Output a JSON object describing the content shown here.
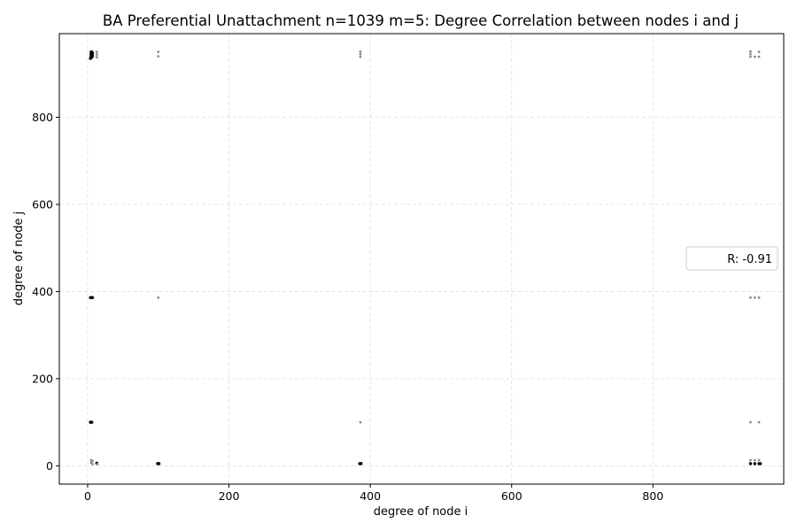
{
  "chart_data": {
    "type": "scatter",
    "title": "BA Preferential Unattachment n=1039 m=5: Degree Correlation between nodes i and j",
    "xlabel": "degree of node i",
    "ylabel": "degree of node j",
    "xlim": [
      -40,
      985
    ],
    "ylim": [
      -42,
      992
    ],
    "xticks": [
      0,
      200,
      400,
      600,
      800
    ],
    "yticks": [
      0,
      200,
      400,
      600,
      800
    ],
    "grid": true,
    "legend": {
      "placement": "center-right",
      "entries": [
        "R: -0.91"
      ]
    },
    "colors": {
      "point_dark": "#000000",
      "point_light": "#8c8c8c",
      "grid": "#dddddd"
    },
    "points": [
      {
        "x": 5,
        "y": 938,
        "tone": "dark"
      },
      {
        "x": 5,
        "y": 941,
        "tone": "dark"
      },
      {
        "x": 5,
        "y": 944,
        "tone": "dark"
      },
      {
        "x": 5,
        "y": 947,
        "tone": "dark"
      },
      {
        "x": 5,
        "y": 950,
        "tone": "dark"
      },
      {
        "x": 6,
        "y": 938,
        "tone": "dark"
      },
      {
        "x": 6,
        "y": 944,
        "tone": "dark"
      },
      {
        "x": 6,
        "y": 950,
        "tone": "dark"
      },
      {
        "x": 7,
        "y": 941,
        "tone": "dark"
      },
      {
        "x": 7,
        "y": 947,
        "tone": "dark"
      },
      {
        "x": 4,
        "y": 935,
        "tone": "dark"
      },
      {
        "x": 13,
        "y": 938,
        "tone": "light"
      },
      {
        "x": 13,
        "y": 944,
        "tone": "light"
      },
      {
        "x": 13,
        "y": 950,
        "tone": "light"
      },
      {
        "x": 100,
        "y": 940,
        "tone": "light"
      },
      {
        "x": 100,
        "y": 950,
        "tone": "light"
      },
      {
        "x": 386,
        "y": 939,
        "tone": "light"
      },
      {
        "x": 386,
        "y": 945,
        "tone": "light"
      },
      {
        "x": 386,
        "y": 951,
        "tone": "light"
      },
      {
        "x": 938,
        "y": 939,
        "tone": "light"
      },
      {
        "x": 938,
        "y": 945,
        "tone": "light"
      },
      {
        "x": 938,
        "y": 951,
        "tone": "light"
      },
      {
        "x": 944,
        "y": 939,
        "tone": "light"
      },
      {
        "x": 950,
        "y": 939,
        "tone": "light"
      },
      {
        "x": 950,
        "y": 950,
        "tone": "light"
      },
      {
        "x": 4,
        "y": 386,
        "tone": "dark"
      },
      {
        "x": 5,
        "y": 386,
        "tone": "dark"
      },
      {
        "x": 6,
        "y": 386,
        "tone": "dark"
      },
      {
        "x": 7,
        "y": 386,
        "tone": "dark"
      },
      {
        "x": 100,
        "y": 386,
        "tone": "light"
      },
      {
        "x": 938,
        "y": 386,
        "tone": "light"
      },
      {
        "x": 944,
        "y": 386,
        "tone": "light"
      },
      {
        "x": 950,
        "y": 386,
        "tone": "light"
      },
      {
        "x": 4,
        "y": 100,
        "tone": "dark"
      },
      {
        "x": 5,
        "y": 100,
        "tone": "dark"
      },
      {
        "x": 6,
        "y": 100,
        "tone": "dark"
      },
      {
        "x": 386,
        "y": 100,
        "tone": "light"
      },
      {
        "x": 938,
        "y": 100,
        "tone": "light"
      },
      {
        "x": 950,
        "y": 100,
        "tone": "light"
      },
      {
        "x": 5,
        "y": 13,
        "tone": "light"
      },
      {
        "x": 7,
        "y": 11,
        "tone": "light"
      },
      {
        "x": 5,
        "y": 7,
        "tone": "light"
      },
      {
        "x": 7,
        "y": 4,
        "tone": "light"
      },
      {
        "x": 13,
        "y": 6,
        "tone": "dark"
      },
      {
        "x": 14,
        "y": 4,
        "tone": "light"
      },
      {
        "x": 99,
        "y": 5,
        "tone": "dark"
      },
      {
        "x": 100,
        "y": 5,
        "tone": "dark"
      },
      {
        "x": 101,
        "y": 5,
        "tone": "dark"
      },
      {
        "x": 385,
        "y": 5,
        "tone": "dark"
      },
      {
        "x": 386,
        "y": 5,
        "tone": "dark"
      },
      {
        "x": 387,
        "y": 5,
        "tone": "dark"
      },
      {
        "x": 938,
        "y": 5,
        "tone": "dark"
      },
      {
        "x": 938,
        "y": 13,
        "tone": "light"
      },
      {
        "x": 944,
        "y": 5,
        "tone": "dark"
      },
      {
        "x": 944,
        "y": 13,
        "tone": "light"
      },
      {
        "x": 950,
        "y": 5,
        "tone": "dark"
      },
      {
        "x": 950,
        "y": 13,
        "tone": "light"
      },
      {
        "x": 952,
        "y": 5,
        "tone": "dark"
      }
    ]
  }
}
